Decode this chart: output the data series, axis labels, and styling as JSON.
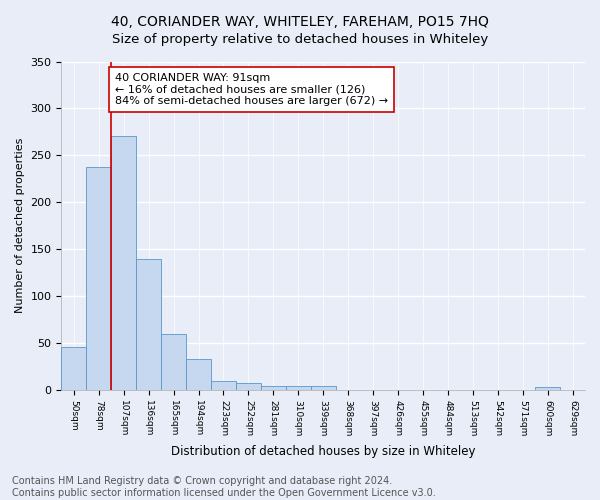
{
  "title": "40, CORIANDER WAY, WHITELEY, FAREHAM, PO15 7HQ",
  "subtitle": "Size of property relative to detached houses in Whiteley",
  "xlabel": "Distribution of detached houses by size in Whiteley",
  "ylabel": "Number of detached properties",
  "bar_labels": [
    "50sqm",
    "78sqm",
    "107sqm",
    "136sqm",
    "165sqm",
    "194sqm",
    "223sqm",
    "252sqm",
    "281sqm",
    "310sqm",
    "339sqm",
    "368sqm",
    "397sqm",
    "426sqm",
    "455sqm",
    "484sqm",
    "513sqm",
    "542sqm",
    "571sqm",
    "600sqm",
    "629sqm"
  ],
  "bar_values": [
    46,
    238,
    271,
    140,
    60,
    33,
    10,
    7,
    4,
    4,
    4,
    0,
    0,
    0,
    0,
    0,
    0,
    0,
    0,
    3,
    0
  ],
  "bar_color": "#c5d8f0",
  "bar_edge_color": "#5a96c8",
  "vline_x": 1.5,
  "vline_color": "#cc0000",
  "annotation_text": "40 CORIANDER WAY: 91sqm\n← 16% of detached houses are smaller (126)\n84% of semi-detached houses are larger (672) →",
  "annotation_box_color": "#ffffff",
  "annotation_box_edge": "#cc0000",
  "ylim": [
    0,
    350
  ],
  "yticks": [
    0,
    50,
    100,
    150,
    200,
    250,
    300,
    350
  ],
  "footnote": "Contains HM Land Registry data © Crown copyright and database right 2024.\nContains public sector information licensed under the Open Government Licence v3.0.",
  "bg_color": "#e8edf8",
  "grid_color": "#ffffff",
  "title_fontsize": 10,
  "subtitle_fontsize": 9.5,
  "footnote_fontsize": 7,
  "ann_fontsize": 8,
  "ylabel_fontsize": 8,
  "xlabel_fontsize": 8.5,
  "ytick_fontsize": 8,
  "xtick_fontsize": 6.5
}
